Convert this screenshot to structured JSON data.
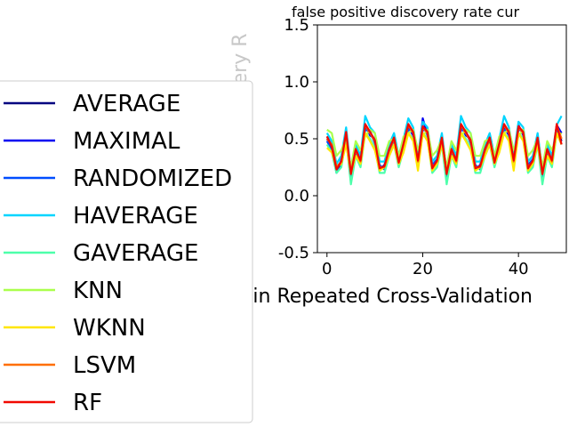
{
  "chart_data": {
    "type": "line",
    "title": "false positive discovery rate cur",
    "xlabel": "Trials in Repeated Cross-Validation",
    "ylabel": "False Positive Discovery R",
    "xlim": [
      -2,
      50
    ],
    "ylim": [
      -0.5,
      1.5
    ],
    "xticks": [
      0,
      20,
      40
    ],
    "yticks": [
      -0.5,
      0.0,
      0.5,
      1.0,
      1.5
    ],
    "grid": false,
    "legend_position": "left",
    "x": [
      0,
      1,
      2,
      3,
      4,
      5,
      6,
      7,
      8,
      9,
      10,
      11,
      12,
      13,
      14,
      15,
      16,
      17,
      18,
      19,
      20,
      21,
      22,
      23,
      24,
      25,
      26,
      27,
      28,
      29,
      30,
      31,
      32,
      33,
      34,
      35,
      36,
      37,
      38,
      39,
      40,
      41,
      42,
      43,
      44,
      45,
      46,
      47,
      48,
      49
    ],
    "series": [
      {
        "name": "AVERAGE",
        "color": "#000080",
        "values": [
          0.5,
          0.42,
          0.25,
          0.3,
          0.55,
          0.2,
          0.4,
          0.3,
          0.6,
          0.55,
          0.48,
          0.25,
          0.25,
          0.4,
          0.5,
          0.3,
          0.45,
          0.62,
          0.55,
          0.3,
          0.6,
          0.55,
          0.25,
          0.3,
          0.5,
          0.2,
          0.4,
          0.3,
          0.6,
          0.55,
          0.48,
          0.25,
          0.25,
          0.4,
          0.5,
          0.3,
          0.45,
          0.62,
          0.55,
          0.3,
          0.6,
          0.55,
          0.25,
          0.3,
          0.5,
          0.2,
          0.4,
          0.3,
          0.6,
          0.48
        ]
      },
      {
        "name": "MAXIMAL",
        "color": "#0000f1",
        "values": [
          0.52,
          0.44,
          0.22,
          0.28,
          0.57,
          0.18,
          0.42,
          0.28,
          0.62,
          0.53,
          0.5,
          0.23,
          0.27,
          0.42,
          0.52,
          0.28,
          0.43,
          0.6,
          0.53,
          0.28,
          0.68,
          0.53,
          0.23,
          0.28,
          0.52,
          0.18,
          0.42,
          0.28,
          0.62,
          0.53,
          0.5,
          0.23,
          0.27,
          0.42,
          0.52,
          0.28,
          0.43,
          0.6,
          0.53,
          0.28,
          0.62,
          0.53,
          0.23,
          0.28,
          0.52,
          0.18,
          0.42,
          0.28,
          0.62,
          0.55
        ]
      },
      {
        "name": "RANDOMIZED",
        "color": "#004dff",
        "values": [
          0.48,
          0.4,
          0.2,
          0.32,
          0.53,
          0.15,
          0.38,
          0.32,
          0.58,
          0.57,
          0.46,
          0.27,
          0.23,
          0.38,
          0.48,
          0.32,
          0.47,
          0.58,
          0.57,
          0.32,
          0.58,
          0.57,
          0.27,
          0.32,
          0.48,
          0.15,
          0.38,
          0.32,
          0.58,
          0.57,
          0.46,
          0.27,
          0.23,
          0.38,
          0.48,
          0.32,
          0.47,
          0.58,
          0.57,
          0.32,
          0.58,
          0.57,
          0.27,
          0.32,
          0.48,
          0.15,
          0.38,
          0.32,
          0.58,
          0.5
        ]
      },
      {
        "name": "HAVERAGE",
        "color": "#00d5ff",
        "values": [
          0.55,
          0.48,
          0.28,
          0.35,
          0.6,
          0.22,
          0.45,
          0.35,
          0.7,
          0.6,
          0.55,
          0.3,
          0.3,
          0.45,
          0.55,
          0.35,
          0.5,
          0.68,
          0.6,
          0.35,
          0.65,
          0.6,
          0.3,
          0.35,
          0.55,
          0.22,
          0.45,
          0.35,
          0.7,
          0.6,
          0.55,
          0.3,
          0.3,
          0.45,
          0.55,
          0.35,
          0.5,
          0.7,
          0.6,
          0.35,
          0.65,
          0.6,
          0.3,
          0.35,
          0.55,
          0.22,
          0.45,
          0.35,
          0.62,
          0.7
        ]
      },
      {
        "name": "GAVERAGE",
        "color": "#4dffaa",
        "values": [
          0.45,
          0.38,
          0.2,
          0.25,
          0.5,
          0.1,
          0.35,
          0.25,
          0.55,
          0.5,
          0.42,
          0.2,
          0.2,
          0.35,
          0.45,
          0.25,
          0.4,
          0.55,
          0.5,
          0.25,
          0.55,
          0.5,
          0.2,
          0.25,
          0.45,
          0.1,
          0.35,
          0.25,
          0.55,
          0.5,
          0.42,
          0.2,
          0.2,
          0.35,
          0.45,
          0.25,
          0.4,
          0.55,
          0.5,
          0.25,
          0.55,
          0.5,
          0.2,
          0.25,
          0.45,
          0.1,
          0.35,
          0.25,
          0.55,
          0.45
        ]
      },
      {
        "name": "KNN",
        "color": "#aaff4d",
        "values": [
          0.58,
          0.55,
          0.35,
          0.4,
          0.5,
          0.25,
          0.48,
          0.4,
          0.52,
          0.58,
          0.55,
          0.35,
          0.35,
          0.48,
          0.5,
          0.35,
          0.52,
          0.55,
          0.58,
          0.4,
          0.52,
          0.58,
          0.35,
          0.4,
          0.5,
          0.25,
          0.48,
          0.4,
          0.52,
          0.58,
          0.55,
          0.35,
          0.35,
          0.48,
          0.5,
          0.35,
          0.52,
          0.55,
          0.58,
          0.4,
          0.52,
          0.58,
          0.35,
          0.4,
          0.5,
          0.25,
          0.48,
          0.4,
          0.52,
          0.55
        ]
      },
      {
        "name": "WKNN",
        "color": "#ffe600",
        "values": [
          0.42,
          0.38,
          0.25,
          0.28,
          0.45,
          0.2,
          0.35,
          0.28,
          0.55,
          0.48,
          0.4,
          0.22,
          0.25,
          0.35,
          0.45,
          0.28,
          0.38,
          0.55,
          0.48,
          0.22,
          0.55,
          0.48,
          0.22,
          0.28,
          0.45,
          0.2,
          0.35,
          0.28,
          0.55,
          0.48,
          0.4,
          0.22,
          0.25,
          0.35,
          0.45,
          0.28,
          0.38,
          0.55,
          0.48,
          0.22,
          0.55,
          0.48,
          0.22,
          0.28,
          0.45,
          0.2,
          0.35,
          0.28,
          0.55,
          0.45
        ]
      },
      {
        "name": "LSVM",
        "color": "#ff6f00",
        "values": [
          0.5,
          0.45,
          0.25,
          0.3,
          0.55,
          0.2,
          0.4,
          0.3,
          0.62,
          0.55,
          0.48,
          0.25,
          0.25,
          0.4,
          0.5,
          0.3,
          0.45,
          0.62,
          0.55,
          0.3,
          0.6,
          0.55,
          0.25,
          0.3,
          0.5,
          0.2,
          0.4,
          0.3,
          0.62,
          0.55,
          0.48,
          0.25,
          0.25,
          0.4,
          0.5,
          0.3,
          0.45,
          0.62,
          0.55,
          0.3,
          0.6,
          0.55,
          0.25,
          0.3,
          0.5,
          0.2,
          0.4,
          0.3,
          0.62,
          0.5
        ]
      },
      {
        "name": "RF",
        "color": "#f10800",
        "values": [
          0.52,
          0.43,
          0.23,
          0.3,
          0.56,
          0.19,
          0.41,
          0.31,
          0.63,
          0.56,
          0.49,
          0.24,
          0.26,
          0.41,
          0.51,
          0.29,
          0.46,
          0.63,
          0.56,
          0.31,
          0.61,
          0.56,
          0.24,
          0.31,
          0.51,
          0.19,
          0.41,
          0.31,
          0.63,
          0.56,
          0.49,
          0.24,
          0.26,
          0.41,
          0.51,
          0.29,
          0.46,
          0.63,
          0.56,
          0.31,
          0.61,
          0.56,
          0.24,
          0.31,
          0.51,
          0.19,
          0.41,
          0.31,
          0.63,
          0.45
        ]
      }
    ]
  }
}
